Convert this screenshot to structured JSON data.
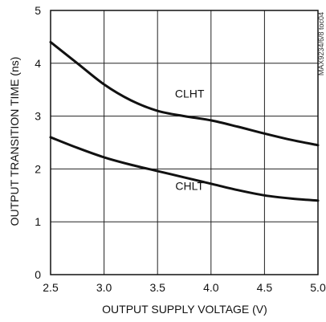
{
  "chart_data": {
    "type": "line",
    "xlabel": "OUTPUT SUPPLY VOLTAGE (V)",
    "ylabel": "OUTPUT TRANSITION TIME (ns)",
    "xlim": [
      2.5,
      5.0
    ],
    "ylim": [
      0,
      5
    ],
    "xticks": [
      "2.5",
      "3.0",
      "3.5",
      "4.0",
      "4.5",
      "5.0"
    ],
    "yticks": [
      "0",
      "1",
      "2",
      "3",
      "4",
      "5"
    ],
    "grid": true,
    "side_note": "MAX9234/6/8 toc04",
    "series": [
      {
        "name": "CLHT",
        "x": [
          2.5,
          2.75,
          3.0,
          3.25,
          3.5,
          3.75,
          4.0,
          4.25,
          4.5,
          4.75,
          5.0
        ],
        "y": [
          4.4,
          4.0,
          3.6,
          3.3,
          3.1,
          3.0,
          2.92,
          2.8,
          2.67,
          2.55,
          2.45
        ]
      },
      {
        "name": "CHLT",
        "x": [
          2.5,
          2.75,
          3.0,
          3.25,
          3.5,
          3.75,
          4.0,
          4.25,
          4.5,
          4.75,
          5.0
        ],
        "y": [
          2.6,
          2.4,
          2.22,
          2.08,
          1.96,
          1.84,
          1.72,
          1.6,
          1.5,
          1.44,
          1.4
        ]
      }
    ],
    "series_labels": [
      {
        "text": "CLHT",
        "x": 3.8,
        "y": 3.35
      },
      {
        "text": "CHLT",
        "x": 3.8,
        "y": 1.6
      }
    ]
  }
}
